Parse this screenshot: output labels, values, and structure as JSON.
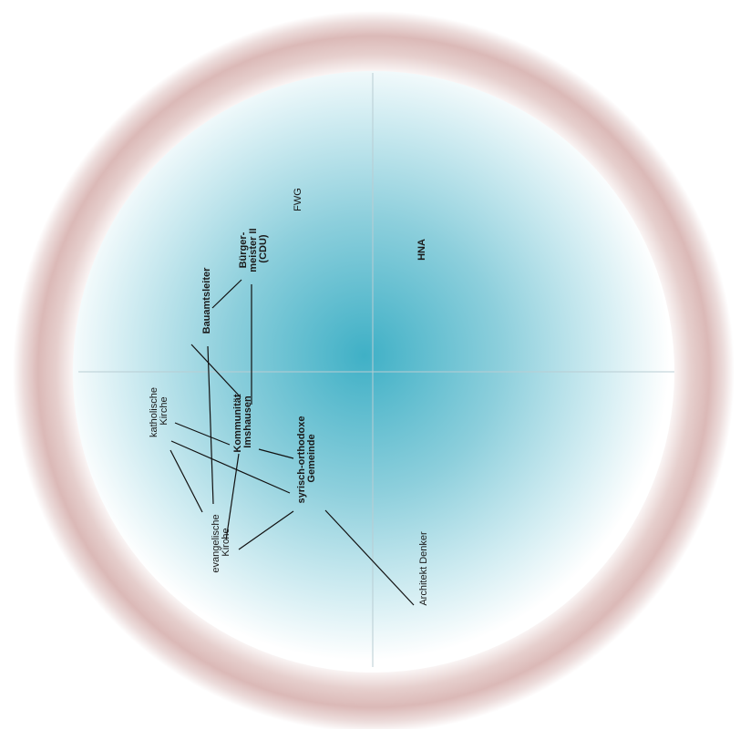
{
  "colors": {
    "halo": "#c79a98",
    "disc_center": "#3fb0c6",
    "disc_edge": "#ffffff",
    "axis": "#b9cdd3",
    "edge": "#111111"
  },
  "nodes": {
    "fwg": {
      "text": "FWG"
    },
    "hna": {
      "text": "HNA"
    },
    "buergermeister": {
      "lines": [
        "Bürger-",
        "meister II",
        "(CDU)"
      ]
    },
    "bauamtsleiter": {
      "text": "Bauamtsleiter"
    },
    "kommunitaet": {
      "lines": [
        "Kommunität",
        "Imshausen"
      ]
    },
    "katholische": {
      "lines": [
        "katholische",
        "Kirche"
      ]
    },
    "syrisch": {
      "lines": [
        "syrisch-orthodoxe",
        "Gemeinde"
      ]
    },
    "evangelische": {
      "lines": [
        "evangelische",
        "Kirche"
      ]
    },
    "architekt": {
      "text": "Architekt Denker"
    }
  }
}
